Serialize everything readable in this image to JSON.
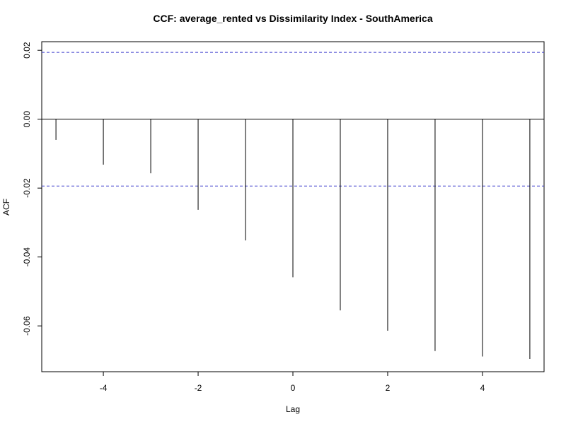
{
  "chart_data": {
    "type": "bar",
    "title": "CCF: average_rented vs Dissimilarity Index - SouthAmerica",
    "xlabel": "Lag",
    "ylabel": "ACF",
    "x": [
      -5,
      -4,
      -3,
      -2,
      -1,
      0,
      1,
      2,
      3,
      4,
      5
    ],
    "values": [
      -0.006,
      -0.0132,
      -0.0157,
      -0.0263,
      -0.0352,
      -0.0459,
      -0.0555,
      -0.0614,
      -0.0673,
      -0.0689,
      -0.0696
    ],
    "xlim": [
      -5.3,
      5.3
    ],
    "ylim": [
      -0.0733,
      0.0225
    ],
    "x_ticks": [
      -4,
      -2,
      0,
      2,
      4
    ],
    "x_tick_labels": [
      "-4",
      "-2",
      "0",
      "2",
      "4"
    ],
    "y_ticks": [
      0.02,
      0.0,
      -0.02,
      -0.04,
      -0.06
    ],
    "y_tick_labels": [
      "0.02",
      "0.00",
      "-0.02",
      "-0.04",
      "-0.06"
    ],
    "confidence_limit": 0.0194,
    "zero_line": true,
    "grid": false,
    "colors": {
      "spike": "#000000",
      "confidence": "#3b3bcc",
      "axis": "#000000"
    }
  }
}
